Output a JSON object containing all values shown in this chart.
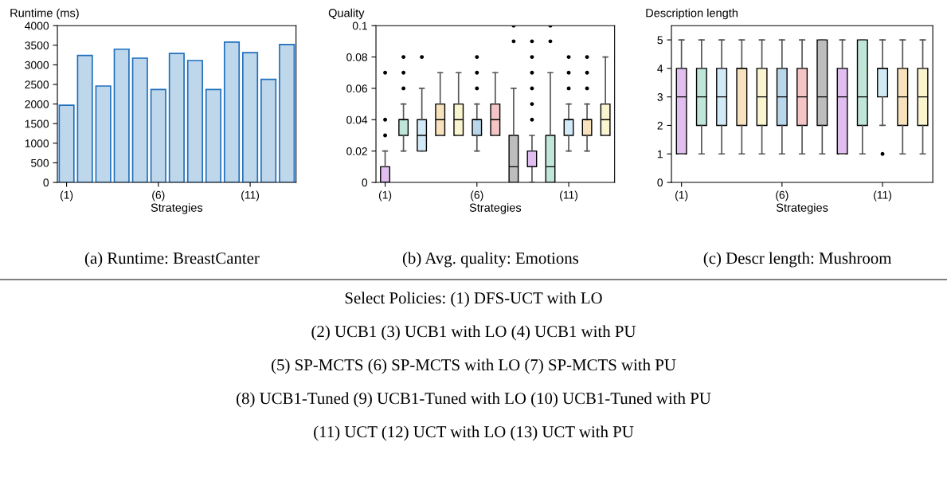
{
  "chart_data": [
    {
      "type": "bar",
      "ylabel": "Runtime (ms)",
      "xlabel": "Strategies",
      "categories": [
        "(1)",
        null,
        null,
        null,
        null,
        "(6)",
        null,
        null,
        null,
        null,
        "(11)",
        null,
        null
      ],
      "values": [
        1970,
        3240,
        2460,
        3400,
        3170,
        2370,
        3290,
        3110,
        2370,
        3580,
        3310,
        2630,
        3520
      ],
      "color": "#bfd7ea",
      "ylim": [
        0,
        4000
      ],
      "yticks": [
        0,
        500,
        1000,
        1500,
        2000,
        2500,
        3000,
        3500,
        4000
      ],
      "annotations": [
        "(a) Runtime: BreastCanter",
        "Select Policies: (1) DFS-UCT with LO",
        "(2) UCB1 (3) UCB1 with LO (4) UCB1 with PU",
        "(5) SP-MCTS (6) SP-MCTS with LO (7) SP-MCTS with PU",
        "(8) UCB1-Tuned (9) UCB1-Tuned with LO (10) UCB1-Tuned with PU",
        "(11) UCT (12) UCT with LO (13) UCT with PU"
      ]
    },
    {
      "type": "box",
      "ylabel": "Quality",
      "xlabel": "Strategies",
      "categories": [
        "(1)",
        null,
        null,
        null,
        null,
        "(6)",
        null,
        null,
        null,
        null,
        "(11)",
        null,
        null
      ],
      "colors": [
        "#e0bff0",
        "#bfe6d8",
        "#d2eaf6",
        "#f7e2bd",
        "#faf5cf",
        "#bad6ea",
        "#f5c4c4",
        "#bdbdbd",
        "#e0bff0",
        "#bfe6d8",
        "#d2eaf6",
        "#f7e2bd",
        "#faf5cf"
      ],
      "boxes": [
        {
          "low": 0,
          "q1": 0,
          "median": 0,
          "q3": 0.01,
          "high": 0.02,
          "outliers": [
            0.03,
            0.04,
            0.07
          ]
        },
        {
          "low": 0.02,
          "q1": 0.03,
          "median": 0.04,
          "q3": 0.04,
          "high": 0.05,
          "outliers": [
            0.06,
            0.07,
            0.08
          ]
        },
        {
          "low": 0.02,
          "q1": 0.02,
          "median": 0.03,
          "q3": 0.04,
          "high": 0.06,
          "outliers": [
            0.08
          ]
        },
        {
          "low": 0.03,
          "q1": 0.03,
          "median": 0.04,
          "q3": 0.05,
          "high": 0.07
        },
        {
          "low": 0.03,
          "q1": 0.03,
          "median": 0.04,
          "q3": 0.05,
          "high": 0.07
        },
        {
          "low": 0.02,
          "q1": 0.03,
          "median": 0.04,
          "q3": 0.04,
          "high": 0.05,
          "outliers": [
            0.06,
            0.07,
            0.08
          ]
        },
        {
          "low": 0.03,
          "q1": 0.03,
          "median": 0.04,
          "q3": 0.05,
          "high": 0.07
        },
        {
          "low": 0,
          "q1": 0,
          "median": 0.01,
          "q3": 0.03,
          "high": 0.06,
          "outliers": [
            0.09,
            0.1
          ]
        },
        {
          "low": 0,
          "q1": 0.01,
          "median": 0.01,
          "q3": 0.02,
          "high": 0.03,
          "outliers": [
            0.04,
            0.05,
            0.06,
            0.07,
            0.08,
            0.09
          ]
        },
        {
          "low": 0,
          "q1": 0,
          "median": 0.01,
          "q3": 0.03,
          "high": 0.07,
          "outliers": [
            0.09,
            0.1
          ]
        },
        {
          "low": 0.02,
          "q1": 0.03,
          "median": 0.04,
          "q3": 0.04,
          "high": 0.05,
          "outliers": [
            0.06,
            0.07,
            0.08
          ]
        },
        {
          "low": 0.02,
          "q1": 0.03,
          "median": 0.04,
          "q3": 0.04,
          "high": 0.05,
          "outliers": [
            0.06,
            0.07,
            0.08
          ]
        },
        {
          "low": 0.03,
          "q1": 0.03,
          "median": 0.04,
          "q3": 0.05,
          "high": 0.08
        }
      ],
      "ylim": [
        0,
        0.1
      ],
      "yticks": [
        0,
        0.02,
        0.04,
        0.06,
        0.08,
        0.1
      ],
      "annotations": [
        "(b) Avg. quality: Emotions"
      ]
    },
    {
      "type": "box",
      "ylabel": "Description length",
      "xlabel": "Strategies",
      "categories": [
        "(1)",
        null,
        null,
        null,
        null,
        "(6)",
        null,
        null,
        null,
        null,
        "(11)",
        null,
        null
      ],
      "colors": [
        "#e0bff0",
        "#bfe6d8",
        "#d2eaf6",
        "#f7e2bd",
        "#faf5cf",
        "#bad6ea",
        "#f5c4c4",
        "#bdbdbd",
        "#e0bff0",
        "#bfe6d8",
        "#d2eaf6",
        "#f7e2bd",
        "#faf5cf"
      ],
      "boxes": [
        {
          "low": 1,
          "q1": 1,
          "median": 3,
          "q3": 4,
          "high": 5
        },
        {
          "low": 1,
          "q1": 2,
          "median": 3,
          "q3": 4,
          "high": 5
        },
        {
          "low": 1,
          "q1": 2,
          "median": 3,
          "q3": 4,
          "high": 5
        },
        {
          "low": 1,
          "q1": 2,
          "median": 4,
          "q3": 4,
          "high": 5
        },
        {
          "low": 1,
          "q1": 2,
          "median": 3,
          "q3": 4,
          "high": 5
        },
        {
          "low": 1,
          "q1": 2,
          "median": 3,
          "q3": 4,
          "high": 5
        },
        {
          "low": 1,
          "q1": 2,
          "median": 3,
          "q3": 4,
          "high": 5
        },
        {
          "low": 1,
          "q1": 2,
          "median": 3,
          "q3": 5,
          "high": 5
        },
        {
          "low": 1,
          "q1": 1,
          "median": 3,
          "q3": 4,
          "high": 5
        },
        {
          "low": 1,
          "q1": 2,
          "median": 3,
          "q3": 5,
          "high": 5
        },
        {
          "low": 2,
          "q1": 3,
          "median": 4,
          "q3": 4,
          "high": 5,
          "outliers": [
            1
          ]
        },
        {
          "low": 1,
          "q1": 2,
          "median": 3,
          "q3": 4,
          "high": 5
        },
        {
          "low": 1,
          "q1": 2,
          "median": 3,
          "q3": 4,
          "high": 5
        }
      ],
      "ylim": [
        0,
        5.5
      ],
      "yticks": [
        0,
        1,
        2,
        3,
        4,
        5
      ],
      "annotations": [
        "(c) Descr length: Mushroom"
      ]
    }
  ]
}
